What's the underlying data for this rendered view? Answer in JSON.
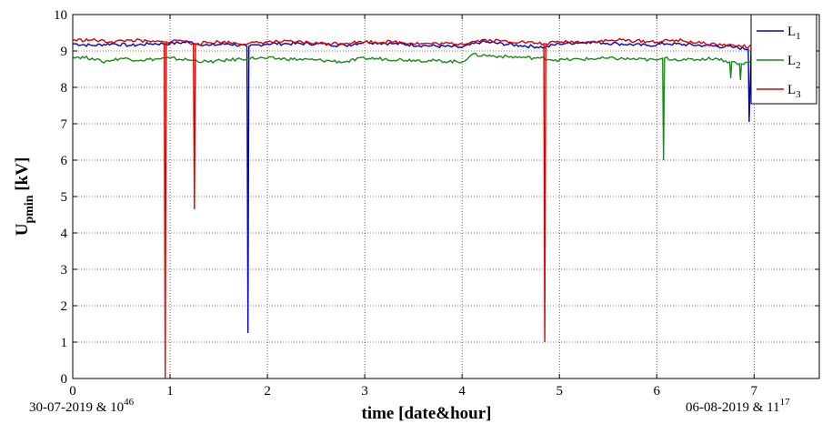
{
  "chart_data": {
    "type": "line",
    "title": "",
    "xlabel": "time [date&hour]",
    "ylabel": {
      "main": "U",
      "sub": "pmin",
      "unit": " [kV]"
    },
    "xlim": [
      0,
      7.67
    ],
    "ylim": [
      0,
      10
    ],
    "xticks": [
      0,
      1,
      2,
      3,
      4,
      5,
      6,
      7
    ],
    "yticks": [
      0,
      1,
      2,
      3,
      4,
      5,
      6,
      7,
      8,
      9,
      10
    ],
    "grid": true,
    "legend_position": "top-right",
    "start_label": {
      "text": "30-07-2019 & 10",
      "sup": "46"
    },
    "end_label": {
      "text": "06-08-2019 & 11",
      "sup": "17"
    },
    "series": [
      {
        "name": "L1",
        "label_main": "L",
        "label_sub": "1",
        "color": "#0000cc",
        "points": [
          [
            0,
            9.2
          ],
          [
            0.2,
            9.15
          ],
          [
            0.4,
            9.2
          ],
          [
            0.6,
            9.15
          ],
          [
            0.8,
            9.2
          ],
          [
            1.0,
            9.2
          ],
          [
            1.2,
            9.25
          ],
          [
            1.4,
            9.15
          ],
          [
            1.6,
            9.2
          ],
          [
            1.79,
            9.12
          ],
          [
            1.8,
            1.25
          ],
          [
            1.81,
            9.12
          ],
          [
            2.0,
            9.2
          ],
          [
            2.2,
            9.2
          ],
          [
            2.5,
            9.2
          ],
          [
            2.8,
            9.15
          ],
          [
            3.0,
            9.25
          ],
          [
            3.3,
            9.2
          ],
          [
            3.6,
            9.15
          ],
          [
            4.0,
            9.1
          ],
          [
            4.2,
            9.25
          ],
          [
            4.6,
            9.15
          ],
          [
            4.85,
            9.1
          ],
          [
            5.0,
            9.2
          ],
          [
            5.3,
            9.25
          ],
          [
            5.6,
            9.2
          ],
          [
            5.9,
            9.15
          ],
          [
            6.1,
            9.2
          ],
          [
            6.5,
            9.15
          ],
          [
            6.8,
            9.1
          ],
          [
            6.94,
            9.05
          ],
          [
            6.95,
            7.05
          ],
          [
            6.97,
            9.1
          ],
          [
            7.0,
            9.05
          ]
        ]
      },
      {
        "name": "L2",
        "label_main": "L",
        "label_sub": "2",
        "color": "#1a8a1a",
        "points": [
          [
            0,
            8.85
          ],
          [
            0.2,
            8.8
          ],
          [
            0.3,
            8.7
          ],
          [
            0.5,
            8.8
          ],
          [
            0.7,
            8.75
          ],
          [
            1.0,
            8.8
          ],
          [
            1.2,
            8.75
          ],
          [
            1.4,
            8.7
          ],
          [
            1.6,
            8.75
          ],
          [
            1.8,
            8.8
          ],
          [
            2.0,
            8.8
          ],
          [
            2.5,
            8.75
          ],
          [
            2.8,
            8.7
          ],
          [
            3.0,
            8.8
          ],
          [
            3.5,
            8.75
          ],
          [
            4.0,
            8.7
          ],
          [
            4.1,
            8.9
          ],
          [
            4.4,
            8.85
          ],
          [
            4.8,
            8.8
          ],
          [
            5.0,
            8.75
          ],
          [
            5.5,
            8.8
          ],
          [
            6.0,
            8.75
          ],
          [
            6.06,
            8.8
          ],
          [
            6.07,
            6.0
          ],
          [
            6.08,
            8.8
          ],
          [
            6.3,
            8.75
          ],
          [
            6.6,
            8.8
          ],
          [
            6.75,
            8.7
          ],
          [
            6.76,
            8.25
          ],
          [
            6.77,
            8.7
          ],
          [
            6.85,
            8.65
          ],
          [
            6.86,
            8.2
          ],
          [
            6.87,
            8.65
          ],
          [
            7.0,
            8.7
          ]
        ]
      },
      {
        "name": "L3",
        "label_main": "L",
        "label_sub": "3",
        "color": "#dd0000",
        "points": [
          [
            0,
            9.3
          ],
          [
            0.2,
            9.3
          ],
          [
            0.4,
            9.25
          ],
          [
            0.6,
            9.3
          ],
          [
            0.8,
            9.25
          ],
          [
            0.94,
            9.25
          ],
          [
            0.95,
            0
          ],
          [
            0.96,
            9.25
          ],
          [
            1.1,
            9.3
          ],
          [
            1.24,
            9.2
          ],
          [
            1.25,
            4.65
          ],
          [
            1.26,
            9.2
          ],
          [
            1.5,
            9.25
          ],
          [
            1.8,
            9.2
          ],
          [
            2.0,
            9.25
          ],
          [
            2.3,
            9.25
          ],
          [
            2.6,
            9.2
          ],
          [
            3.0,
            9.25
          ],
          [
            3.3,
            9.25
          ],
          [
            3.6,
            9.2
          ],
          [
            4.0,
            9.2
          ],
          [
            4.2,
            9.3
          ],
          [
            4.6,
            9.25
          ],
          [
            4.84,
            9.2
          ],
          [
            4.85,
            1.0
          ],
          [
            4.86,
            9.2
          ],
          [
            5.0,
            9.25
          ],
          [
            5.3,
            9.25
          ],
          [
            5.6,
            9.3
          ],
          [
            6.0,
            9.25
          ],
          [
            6.2,
            9.3
          ],
          [
            6.5,
            9.2
          ],
          [
            6.8,
            9.15
          ],
          [
            7.0,
            9.1
          ]
        ]
      }
    ]
  }
}
